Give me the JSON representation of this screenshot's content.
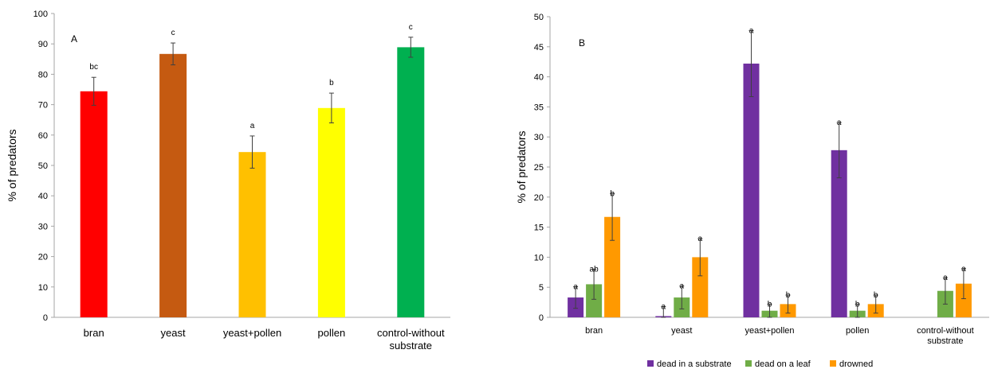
{
  "chart_data": [
    {
      "type": "bar",
      "panel_label": "A",
      "ylabel": "% of predators",
      "xlabel": "",
      "ylim": [
        0,
        100
      ],
      "yticks": [
        0,
        10,
        20,
        30,
        40,
        50,
        60,
        70,
        80,
        90,
        100
      ],
      "categories": [
        [
          "bran"
        ],
        [
          "yeast"
        ],
        [
          "yeast+pollen"
        ],
        [
          "pollen"
        ],
        [
          "control-without",
          "substrate"
        ]
      ],
      "values": [
        74.4,
        86.7,
        54.4,
        68.9,
        88.9
      ],
      "errors": [
        4.6,
        3.6,
        5.3,
        4.9,
        3.3
      ],
      "colors": [
        "#ff0000",
        "#c55a11",
        "#ffc000",
        "#ffff00",
        "#00b050"
      ],
      "significance": [
        "bc",
        "c",
        "a",
        "b",
        "c"
      ],
      "grid": false
    },
    {
      "type": "bar",
      "panel_label": "B",
      "ylabel": "% of predators",
      "xlabel": "",
      "ylim": [
        0,
        50
      ],
      "yticks": [
        0,
        5,
        10,
        15,
        20,
        25,
        30,
        35,
        40,
        45,
        50
      ],
      "categories": [
        [
          "bran"
        ],
        [
          "yeast"
        ],
        [
          "yeast+pollen"
        ],
        [
          "pollen"
        ],
        [
          "control-without",
          "substrate"
        ]
      ],
      "series": [
        {
          "name": "dead in  a substrate",
          "color": "#7030a0",
          "values": [
            3.3,
            0.2,
            42.2,
            27.8,
            null
          ],
          "errors": [
            1.8,
            1.6,
            5.5,
            4.6,
            null
          ],
          "significance": [
            "a",
            "a",
            "a",
            "a",
            ""
          ]
        },
        {
          "name": "dead on a leaf",
          "color": "#70ad47",
          "values": [
            5.5,
            3.3,
            1.1,
            1.1,
            4.4
          ],
          "errors": [
            2.5,
            1.9,
            1.1,
            1.1,
            2.2
          ],
          "significance": [
            "ab",
            "a",
            "b",
            "b",
            "a"
          ]
        },
        {
          "name": "drowned",
          "color": "#ff9900",
          "values": [
            16.7,
            10.0,
            2.2,
            2.2,
            5.6
          ],
          "errors": [
            3.9,
            3.1,
            1.5,
            1.5,
            2.5
          ],
          "significance": [
            "b",
            "a",
            "b",
            "b",
            "a"
          ]
        }
      ],
      "legend_position": "bottom",
      "grid": false
    }
  ]
}
